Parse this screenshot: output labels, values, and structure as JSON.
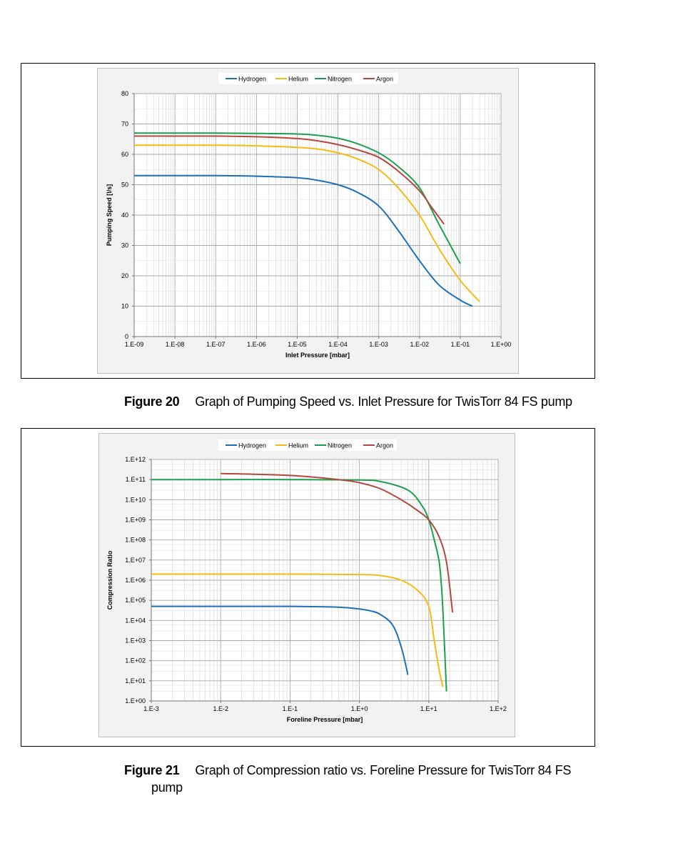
{
  "chart_data": [
    {
      "type": "line",
      "xlabel": "Inlet Pressure [mbar]",
      "ylabel": "Pumping Speed [l/s]",
      "x_scale": "log",
      "xlim": [
        1e-09,
        1
      ],
      "ylim": [
        0,
        80
      ],
      "x_ticks": [
        "1.E-09",
        "1.E-08",
        "1.E-07",
        "1.E-06",
        "1.E-05",
        "1.E-04",
        "1.E-03",
        "1.E-02",
        "1.E-01",
        "1.E+00"
      ],
      "y_ticks": [
        "0",
        "10",
        "20",
        "30",
        "40",
        "50",
        "60",
        "70",
        "80"
      ],
      "grid": true,
      "legend": "top-center",
      "series": [
        {
          "name": "Hydrogen",
          "color": "#1f6fb8",
          "x": [
            1e-09,
            1e-08,
            1e-07,
            1e-06,
            1e-05,
            3e-05,
            0.0001,
            0.0003,
            0.001,
            0.003,
            0.01,
            0.03,
            0.1,
            0.2
          ],
          "y": [
            53,
            53,
            53,
            52.8,
            52.3,
            51.5,
            50,
            47.5,
            43,
            35,
            25,
            17,
            12,
            10
          ]
        },
        {
          "name": "Helium",
          "color": "#f5bb14",
          "x": [
            1e-09,
            1e-08,
            1e-07,
            1e-06,
            1e-05,
            3e-05,
            0.0001,
            0.0003,
            0.001,
            0.003,
            0.01,
            0.03,
            0.1,
            0.3
          ],
          "y": [
            63,
            63,
            63,
            62.8,
            62.3,
            61.8,
            60.5,
            58.5,
            55,
            49,
            40,
            29,
            18.5,
            11.5
          ]
        },
        {
          "name": "Nitrogen",
          "color": "#1aa04f",
          "x": [
            1e-09,
            1e-08,
            1e-07,
            1e-06,
            1e-05,
            3e-05,
            0.0001,
            0.0003,
            0.001,
            0.003,
            0.01,
            0.03,
            0.1
          ],
          "y": [
            67,
            67,
            67,
            66.9,
            66.7,
            66.3,
            65.3,
            63.5,
            60.5,
            56,
            49,
            37,
            24
          ]
        },
        {
          "name": "Argon",
          "color": "#b5473f",
          "x": [
            1e-09,
            1e-08,
            1e-07,
            1e-06,
            1e-05,
            3e-05,
            0.0001,
            0.0003,
            0.001,
            0.003,
            0.01,
            0.02,
            0.04
          ],
          "y": [
            66,
            66,
            66,
            65.8,
            65.2,
            64.5,
            63.2,
            61.5,
            59,
            54.5,
            48,
            42.5,
            37
          ]
        }
      ]
    },
    {
      "type": "line",
      "xlabel": "Foreline Pressure [mbar]",
      "ylabel": "Compression Ratio",
      "x_scale": "log",
      "y_scale": "log",
      "xlim": [
        0.001,
        100
      ],
      "ylim": [
        1,
        1000000000000.0
      ],
      "x_ticks": [
        "1.E-3",
        "1.E-2",
        "1.E-1",
        "1.E+0",
        "1.E+1",
        "1.E+2"
      ],
      "y_ticks": [
        "1.E+00",
        "1.E+01",
        "1.E+02",
        "1.E+03",
        "1.E+04",
        "1.E+05",
        "1.E+06",
        "1.E+07",
        "1.E+08",
        "1.E+09",
        "1.E+10",
        "1.E+11",
        "1.E+12"
      ],
      "grid": true,
      "legend": "top-center",
      "series": [
        {
          "name": "Hydrogen",
          "color": "#1f6fb8",
          "x": [
            0.001,
            0.01,
            0.1,
            0.5,
            1,
            1.5,
            2,
            3,
            4,
            5
          ],
          "y": [
            50000.0,
            50000.0,
            50000.0,
            46000.0,
            37000.0,
            29000.0,
            20000.0,
            6000.0,
            500,
            20
          ]
        },
        {
          "name": "Helium",
          "color": "#f5bb14",
          "x": [
            0.001,
            0.01,
            0.1,
            1,
            2,
            4,
            7,
            10,
            12,
            14,
            16
          ],
          "y": [
            2000000.0,
            2000000.0,
            2000000.0,
            1900000.0,
            1700000.0,
            1000000.0,
            300000.0,
            50000.0,
            1000,
            40,
            5
          ]
        },
        {
          "name": "Nitrogen",
          "color": "#1aa04f",
          "x": [
            0.001,
            0.01,
            0.1,
            1,
            2,
            5,
            8,
            10,
            12,
            14,
            15,
            16,
            18
          ],
          "y": [
            100000000000.0,
            100000000000.0,
            100000000000.0,
            95000000000.0,
            80000000000.0,
            30000000000.0,
            5000000000.0,
            1000000000.0,
            100000000.0,
            10000000.0,
            1000000.0,
            30000.0,
            3
          ]
        },
        {
          "name": "Argon",
          "color": "#b5473f",
          "x": [
            0.01,
            0.1,
            0.5,
            1,
            2,
            4,
            7,
            10,
            14,
            18,
            22
          ],
          "y": [
            200000000000.0,
            160000000000.0,
            100000000000.0,
            70000000000.0,
            35000000000.0,
            10000000000.0,
            2800000000.0,
            1000000000.0,
            150000000.0,
            8000000.0,
            25000.0
          ]
        }
      ]
    }
  ],
  "figures": [
    {
      "number": "Figure 20",
      "caption": "Graph of Pumping Speed vs. Inlet Pressure for TwisTorr 84 FS pump"
    },
    {
      "number": "Figure 21",
      "caption": "Graph of Compression ratio vs. Foreline Pressure for TwisTorr 84 FS",
      "caption_cont": "pump"
    }
  ]
}
